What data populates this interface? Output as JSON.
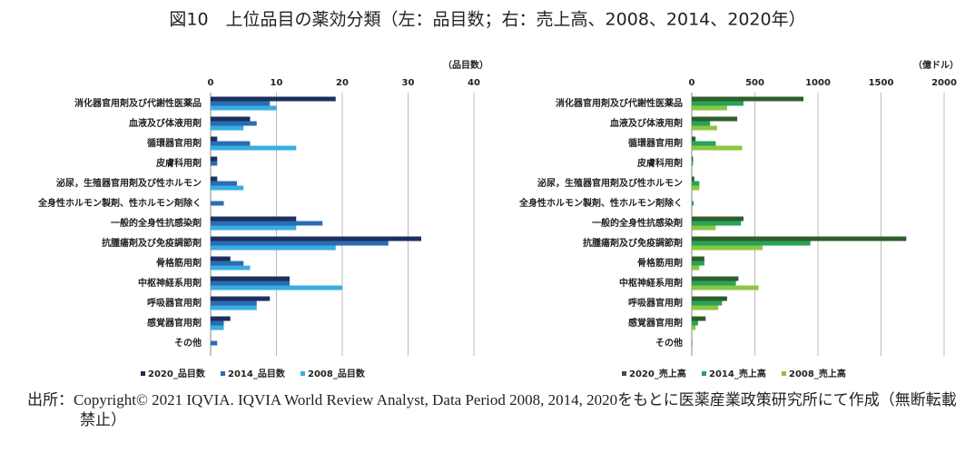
{
  "title": "図10　上位品目の薬効分類（左：品目数；右：売上高、2008、2014、2020年）",
  "source": "出所：Copyright© 2021 IQVIA. IQVIA World Review Analyst, Data Period 2008, 2014, 2020をもとに医薬産業政策研究所にて作成（無断転載禁止）",
  "chart_data": [
    {
      "type": "bar",
      "orientation": "horizontal",
      "x_label": "（品目数）",
      "categories": [
        "消化器官用剤及び代謝性医薬品",
        "血液及び体液用剤",
        "循環器官用剤",
        "皮膚科用剤",
        "泌尿，生殖器官用剤及び性ホルモン",
        "全身性ホルモン製剤、性ホルモン剤除く",
        "一般的全身性抗感染剤",
        "抗腫瘍剤及び免疫調節剤",
        "骨格筋用剤",
        "中枢神経系用剤",
        "呼吸器官用剤",
        "感覚器官用剤",
        "その他"
      ],
      "series": [
        {
          "name": "2020_品目数",
          "color": "#1c2f5e",
          "values": [
            19,
            6,
            1,
            1,
            1,
            0,
            13,
            32,
            3,
            12,
            9,
            3,
            0
          ]
        },
        {
          "name": "2014_品目数",
          "color": "#2b6cb3",
          "values": [
            9,
            7,
            6,
            1,
            4,
            2,
            17,
            27,
            5,
            12,
            7,
            2,
            1
          ]
        },
        {
          "name": "2008_品目数",
          "color": "#36aee3",
          "values": [
            10,
            5,
            13,
            0,
            5,
            0,
            13,
            19,
            6,
            20,
            7,
            2,
            0
          ]
        }
      ],
      "xlim": [
        0,
        40
      ],
      "xticks": [
        0,
        10,
        20,
        30,
        40
      ],
      "grid": true
    },
    {
      "type": "bar",
      "orientation": "horizontal",
      "x_label": "（億ドル）",
      "categories": [
        "消化器官用剤及び代謝性医薬品",
        "血液及び体液用剤",
        "循環器官用剤",
        "皮膚科用剤",
        "泌尿，生殖器官用剤及び性ホルモン",
        "全身性ホルモン製剤、性ホルモン剤除く",
        "一般的全身性抗感染剤",
        "抗腫瘍剤及び免疫調節剤",
        "骨格筋用剤",
        "中枢神経系用剤",
        "呼吸器官用剤",
        "感覚器官用剤",
        "その他"
      ],
      "series": [
        {
          "name": "2020_売上高",
          "color": "#2f5e2a",
          "values": [
            885,
            360,
            30,
            10,
            20,
            0,
            410,
            1700,
            100,
            370,
            280,
            110,
            0
          ]
        },
        {
          "name": "2014_売上高",
          "color": "#27a35a",
          "values": [
            410,
            145,
            190,
            10,
            60,
            15,
            390,
            940,
            100,
            350,
            240,
            50,
            5
          ]
        },
        {
          "name": "2008_売上高",
          "color": "#8cc63f",
          "values": [
            280,
            200,
            400,
            5,
            60,
            0,
            190,
            560,
            60,
            530,
            210,
            30,
            0
          ]
        }
      ],
      "xlim": [
        0,
        2000
      ],
      "xticks": [
        0,
        500,
        1000,
        1500,
        2000
      ],
      "grid": true
    }
  ]
}
